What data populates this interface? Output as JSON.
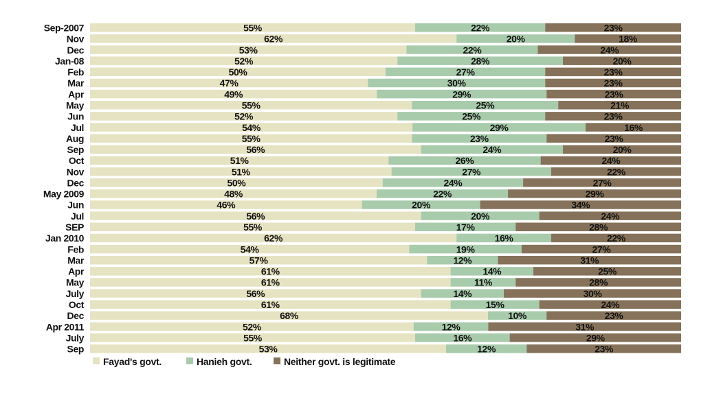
{
  "chart_data": {
    "type": "bar",
    "orientation": "horizontal",
    "stacked": "100%",
    "title": "",
    "xlabel": "",
    "ylabel": "",
    "categories": [
      "Sep-2007",
      "Nov",
      "Dec",
      "Jan-08",
      "Feb",
      "Mar",
      "Apr",
      "May",
      "Jun",
      "Jul",
      "Aug",
      "Sep",
      "Oct",
      "Nov",
      "Dec",
      "May 2009",
      "Jun",
      "Jul",
      "SEP",
      "Jan 2010",
      "Feb",
      "Mar",
      "Apr",
      "May",
      "July",
      "Oct",
      "Dec",
      "Apr 2011",
      "July",
      "Sep"
    ],
    "series": [
      {
        "name": "Fayad's govt.",
        "color": "#e6e3c2",
        "values": [
          55,
          62,
          53,
          52,
          50,
          47,
          49,
          55,
          52,
          54,
          55,
          56,
          51,
          51,
          50,
          48,
          46,
          56,
          55,
          62,
          54,
          57,
          61,
          61,
          56,
          61,
          68,
          52,
          55,
          53
        ]
      },
      {
        "name": "Hanieh govt.",
        "color": "#a8cbac",
        "values": [
          22,
          20,
          22,
          28,
          27,
          30,
          29,
          25,
          25,
          29,
          23,
          24,
          26,
          27,
          24,
          22,
          20,
          20,
          17,
          16,
          19,
          12,
          14,
          11,
          14,
          15,
          10,
          12,
          16,
          12
        ]
      },
      {
        "name": "Neither govt. is legitimate",
        "color": "#86725a",
        "values": [
          23,
          18,
          24,
          20,
          23,
          23,
          23,
          21,
          23,
          16,
          23,
          20,
          24,
          22,
          27,
          29,
          34,
          24,
          28,
          22,
          27,
          31,
          25,
          28,
          30,
          24,
          23,
          31,
          29,
          23
        ]
      }
    ],
    "value_suffix": "%",
    "legend_position": "bottom-left",
    "grid": false
  }
}
